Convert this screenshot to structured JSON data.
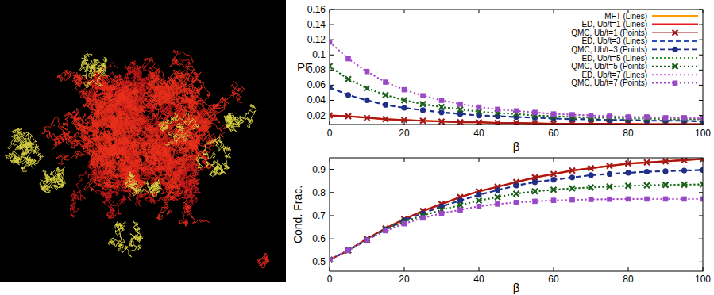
{
  "chart_data": [
    {
      "type": "line",
      "ylabel": "PE",
      "xlabel": "β",
      "xlim": [
        0,
        100
      ],
      "xticks": [
        0,
        20,
        40,
        60,
        80,
        100
      ],
      "ylim": [
        0.008,
        0.16
      ],
      "yticks": [
        0.02,
        0.04,
        0.06,
        0.08,
        0.1,
        0.12,
        0.14,
        0.16
      ],
      "legend": "top-right",
      "x": [
        0,
        5,
        10,
        15,
        20,
        25,
        30,
        35,
        40,
        45,
        50,
        55,
        60,
        65,
        70,
        75,
        80,
        85,
        90,
        95,
        100
      ],
      "series": [
        {
          "name": "MFT (Lines)",
          "color": "#ff9900",
          "line_style": "solid",
          "marker": "none",
          "values": [
            0.02,
            0.019,
            0.017,
            0.015,
            0.014,
            0.013,
            0.012,
            0.011,
            0.011,
            0.01,
            0.01,
            0.0095,
            0.009,
            0.009,
            0.009,
            0.0088,
            0.0086,
            0.0085,
            0.0085,
            0.0084,
            0.0084
          ]
        },
        {
          "name": "ED, Ub/t=1 (Lines)",
          "color": "#e41a1c",
          "line_style": "solid",
          "marker": "none",
          "values": [
            0.02,
            0.019,
            0.017,
            0.015,
            0.014,
            0.013,
            0.012,
            0.011,
            0.011,
            0.01,
            0.01,
            0.0095,
            0.009,
            0.009,
            0.009,
            0.0088,
            0.0086,
            0.0085,
            0.0085,
            0.0084,
            0.0084
          ]
        },
        {
          "name": "QMC, Ub/t=1 (Points)",
          "color": "#a01818",
          "line_style": "solid",
          "marker": "x",
          "values": [
            0.02,
            0.019,
            0.017,
            0.015,
            0.014,
            0.013,
            0.012,
            0.011,
            0.011,
            0.01,
            0.01,
            0.0095,
            0.009,
            0.009,
            0.009,
            0.0088,
            0.0086,
            0.0085,
            0.0085,
            0.0084,
            0.0084
          ]
        },
        {
          "name": "ED, Ub/t=3 (Lines)",
          "color": "#2f4fb8",
          "line_style": "dashed",
          "marker": "none",
          "values": [
            0.057,
            0.047,
            0.04,
            0.034,
            0.03,
            0.027,
            0.024,
            0.022,
            0.02,
            0.019,
            0.018,
            0.017,
            0.016,
            0.015,
            0.015,
            0.014,
            0.014,
            0.013,
            0.013,
            0.013,
            0.012
          ]
        },
        {
          "name": "QMC, Ub/t=3 (Points)",
          "color": "#1f2f88",
          "line_style": "dashed",
          "marker": "circle",
          "values": [
            0.057,
            0.047,
            0.04,
            0.034,
            0.03,
            0.027,
            0.024,
            0.022,
            0.02,
            0.019,
            0.018,
            0.017,
            0.016,
            0.015,
            0.015,
            0.014,
            0.014,
            0.013,
            0.013,
            0.013,
            0.012
          ]
        },
        {
          "name": "ED, Ub/t=5 (Lines)",
          "color": "#2e9a2e",
          "line_style": "dotted",
          "marker": "none",
          "values": [
            0.085,
            0.068,
            0.056,
            0.047,
            0.04,
            0.035,
            0.031,
            0.028,
            0.025,
            0.023,
            0.022,
            0.02,
            0.019,
            0.018,
            0.017,
            0.017,
            0.016,
            0.016,
            0.015,
            0.015,
            0.015
          ]
        },
        {
          "name": "QMC, Ub/t=5 (Points)",
          "color": "#1c5e1c",
          "line_style": "dotted",
          "marker": "x",
          "values": [
            0.085,
            0.068,
            0.056,
            0.047,
            0.04,
            0.035,
            0.031,
            0.028,
            0.025,
            0.023,
            0.022,
            0.02,
            0.019,
            0.018,
            0.017,
            0.017,
            0.016,
            0.016,
            0.015,
            0.015,
            0.015
          ]
        },
        {
          "name": "ED, Ub/t=7 (Lines)",
          "color": "#e07ae0",
          "line_style": "dotted",
          "marker": "none",
          "values": [
            0.117,
            0.095,
            0.078,
            0.064,
            0.054,
            0.046,
            0.04,
            0.035,
            0.031,
            0.028,
            0.026,
            0.024,
            0.022,
            0.021,
            0.02,
            0.019,
            0.018,
            0.018,
            0.017,
            0.017,
            0.016
          ]
        },
        {
          "name": "QMC, Ub/t=7 (Points)",
          "color": "#9a48c8",
          "line_style": "dotted",
          "marker": "square",
          "values": [
            0.117,
            0.095,
            0.078,
            0.064,
            0.054,
            0.046,
            0.04,
            0.035,
            0.031,
            0.028,
            0.026,
            0.024,
            0.022,
            0.021,
            0.02,
            0.019,
            0.018,
            0.018,
            0.017,
            0.017,
            0.016
          ]
        }
      ]
    },
    {
      "type": "line",
      "ylabel": "Cond. Frac.",
      "xlabel": "β",
      "xlim": [
        0,
        100
      ],
      "xticks": [
        0,
        20,
        40,
        60,
        80,
        100
      ],
      "ylim": [
        0.46,
        0.95
      ],
      "yticks": [
        0.5,
        0.6,
        0.7,
        0.8,
        0.9
      ],
      "x": [
        0,
        5,
        10,
        15,
        20,
        25,
        30,
        35,
        40,
        45,
        50,
        55,
        60,
        65,
        70,
        75,
        80,
        85,
        90,
        95,
        100
      ],
      "series": [
        {
          "color": "#ff9900",
          "line_style": "solid",
          "marker": "none",
          "values": [
            0.51,
            0.55,
            0.6,
            0.645,
            0.685,
            0.72,
            0.75,
            0.78,
            0.805,
            0.825,
            0.845,
            0.865,
            0.88,
            0.895,
            0.905,
            0.915,
            0.925,
            0.93,
            0.935,
            0.94,
            0.945
          ]
        },
        {
          "color": "#e41a1c",
          "line_style": "solid",
          "marker": "none",
          "values": [
            0.51,
            0.55,
            0.6,
            0.645,
            0.685,
            0.72,
            0.75,
            0.78,
            0.805,
            0.825,
            0.845,
            0.865,
            0.88,
            0.895,
            0.905,
            0.915,
            0.925,
            0.93,
            0.935,
            0.94,
            0.945
          ]
        },
        {
          "color": "#a01818",
          "line_style": "solid",
          "marker": "x",
          "values": [
            0.51,
            0.55,
            0.6,
            0.645,
            0.685,
            0.72,
            0.75,
            0.78,
            0.805,
            0.825,
            0.845,
            0.865,
            0.88,
            0.895,
            0.905,
            0.915,
            0.925,
            0.93,
            0.935,
            0.94,
            0.945
          ]
        },
        {
          "color": "#2f4fb8",
          "line_style": "dashed",
          "marker": "none",
          "values": [
            0.51,
            0.55,
            0.595,
            0.64,
            0.68,
            0.71,
            0.74,
            0.765,
            0.79,
            0.81,
            0.83,
            0.845,
            0.855,
            0.865,
            0.875,
            0.88,
            0.885,
            0.89,
            0.892,
            0.895,
            0.897
          ]
        },
        {
          "color": "#1f2f88",
          "line_style": "dashed",
          "marker": "circle",
          "values": [
            0.51,
            0.55,
            0.595,
            0.64,
            0.68,
            0.71,
            0.74,
            0.765,
            0.79,
            0.81,
            0.83,
            0.845,
            0.855,
            0.865,
            0.875,
            0.88,
            0.885,
            0.89,
            0.892,
            0.895,
            0.897
          ]
        },
        {
          "color": "#2e9a2e",
          "line_style": "dotted",
          "marker": "none",
          "values": [
            0.51,
            0.55,
            0.595,
            0.64,
            0.675,
            0.7,
            0.725,
            0.745,
            0.765,
            0.78,
            0.795,
            0.805,
            0.812,
            0.818,
            0.822,
            0.826,
            0.829,
            0.831,
            0.833,
            0.834,
            0.835
          ]
        },
        {
          "color": "#1c5e1c",
          "line_style": "dotted",
          "marker": "x",
          "values": [
            0.51,
            0.55,
            0.595,
            0.64,
            0.675,
            0.7,
            0.725,
            0.745,
            0.765,
            0.78,
            0.795,
            0.805,
            0.812,
            0.818,
            0.822,
            0.826,
            0.829,
            0.831,
            0.833,
            0.834,
            0.835
          ]
        },
        {
          "color": "#e07ae0",
          "line_style": "dotted",
          "marker": "none",
          "values": [
            0.51,
            0.55,
            0.595,
            0.635,
            0.665,
            0.69,
            0.71,
            0.725,
            0.74,
            0.75,
            0.757,
            0.762,
            0.766,
            0.768,
            0.77,
            0.771,
            0.772,
            0.772,
            0.772,
            0.772,
            0.772
          ]
        },
        {
          "color": "#9a48c8",
          "line_style": "dotted",
          "marker": "square",
          "values": [
            0.51,
            0.55,
            0.595,
            0.635,
            0.665,
            0.69,
            0.71,
            0.725,
            0.74,
            0.75,
            0.757,
            0.762,
            0.766,
            0.768,
            0.77,
            0.771,
            0.772,
            0.772,
            0.772,
            0.772,
            0.772
          ]
        }
      ]
    }
  ]
}
